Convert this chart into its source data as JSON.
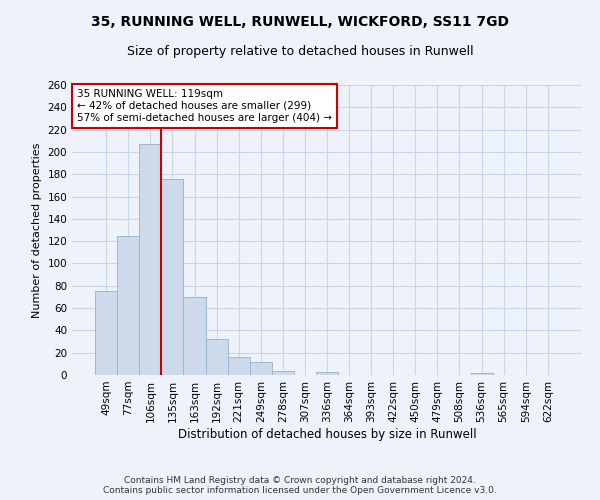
{
  "title": "35, RUNNING WELL, RUNWELL, WICKFORD, SS11 7GD",
  "subtitle": "Size of property relative to detached houses in Runwell",
  "xlabel": "Distribution of detached houses by size in Runwell",
  "ylabel": "Number of detached properties",
  "categories": [
    "49sqm",
    "77sqm",
    "106sqm",
    "135sqm",
    "163sqm",
    "192sqm",
    "221sqm",
    "249sqm",
    "278sqm",
    "307sqm",
    "336sqm",
    "364sqm",
    "393sqm",
    "422sqm",
    "450sqm",
    "479sqm",
    "508sqm",
    "536sqm",
    "565sqm",
    "594sqm",
    "622sqm"
  ],
  "values": [
    75,
    125,
    207,
    176,
    70,
    32,
    16,
    12,
    4,
    0,
    3,
    0,
    0,
    0,
    0,
    0,
    0,
    2,
    0,
    0,
    0
  ],
  "bar_color": "#ccdaeb",
  "bar_edge_color": "#9ab8d2",
  "bar_width": 1.0,
  "vline_x_index": 2.5,
  "property_label": "35 RUNNING WELL: 119sqm",
  "annotation_line1": "← 42% of detached houses are smaller (299)",
  "annotation_line2": "57% of semi-detached houses are larger (404) →",
  "annotation_box_color": "#ffffff",
  "annotation_box_edge_color": "#cc0000",
  "vline_color": "#cc0000",
  "ylim": [
    0,
    260
  ],
  "yticks": [
    0,
    20,
    40,
    60,
    80,
    100,
    120,
    140,
    160,
    180,
    200,
    220,
    240,
    260
  ],
  "grid_color": "#c8d4e8",
  "footnote1": "Contains HM Land Registry data © Crown copyright and database right 2024.",
  "footnote2": "Contains public sector information licensed under the Open Government Licence v3.0.",
  "bg_color": "#eef2fa",
  "title_fontsize": 10,
  "subtitle_fontsize": 9,
  "xlabel_fontsize": 8.5,
  "ylabel_fontsize": 8,
  "tick_fontsize": 7.5,
  "annot_fontsize": 7.5,
  "footnote_fontsize": 6.5
}
